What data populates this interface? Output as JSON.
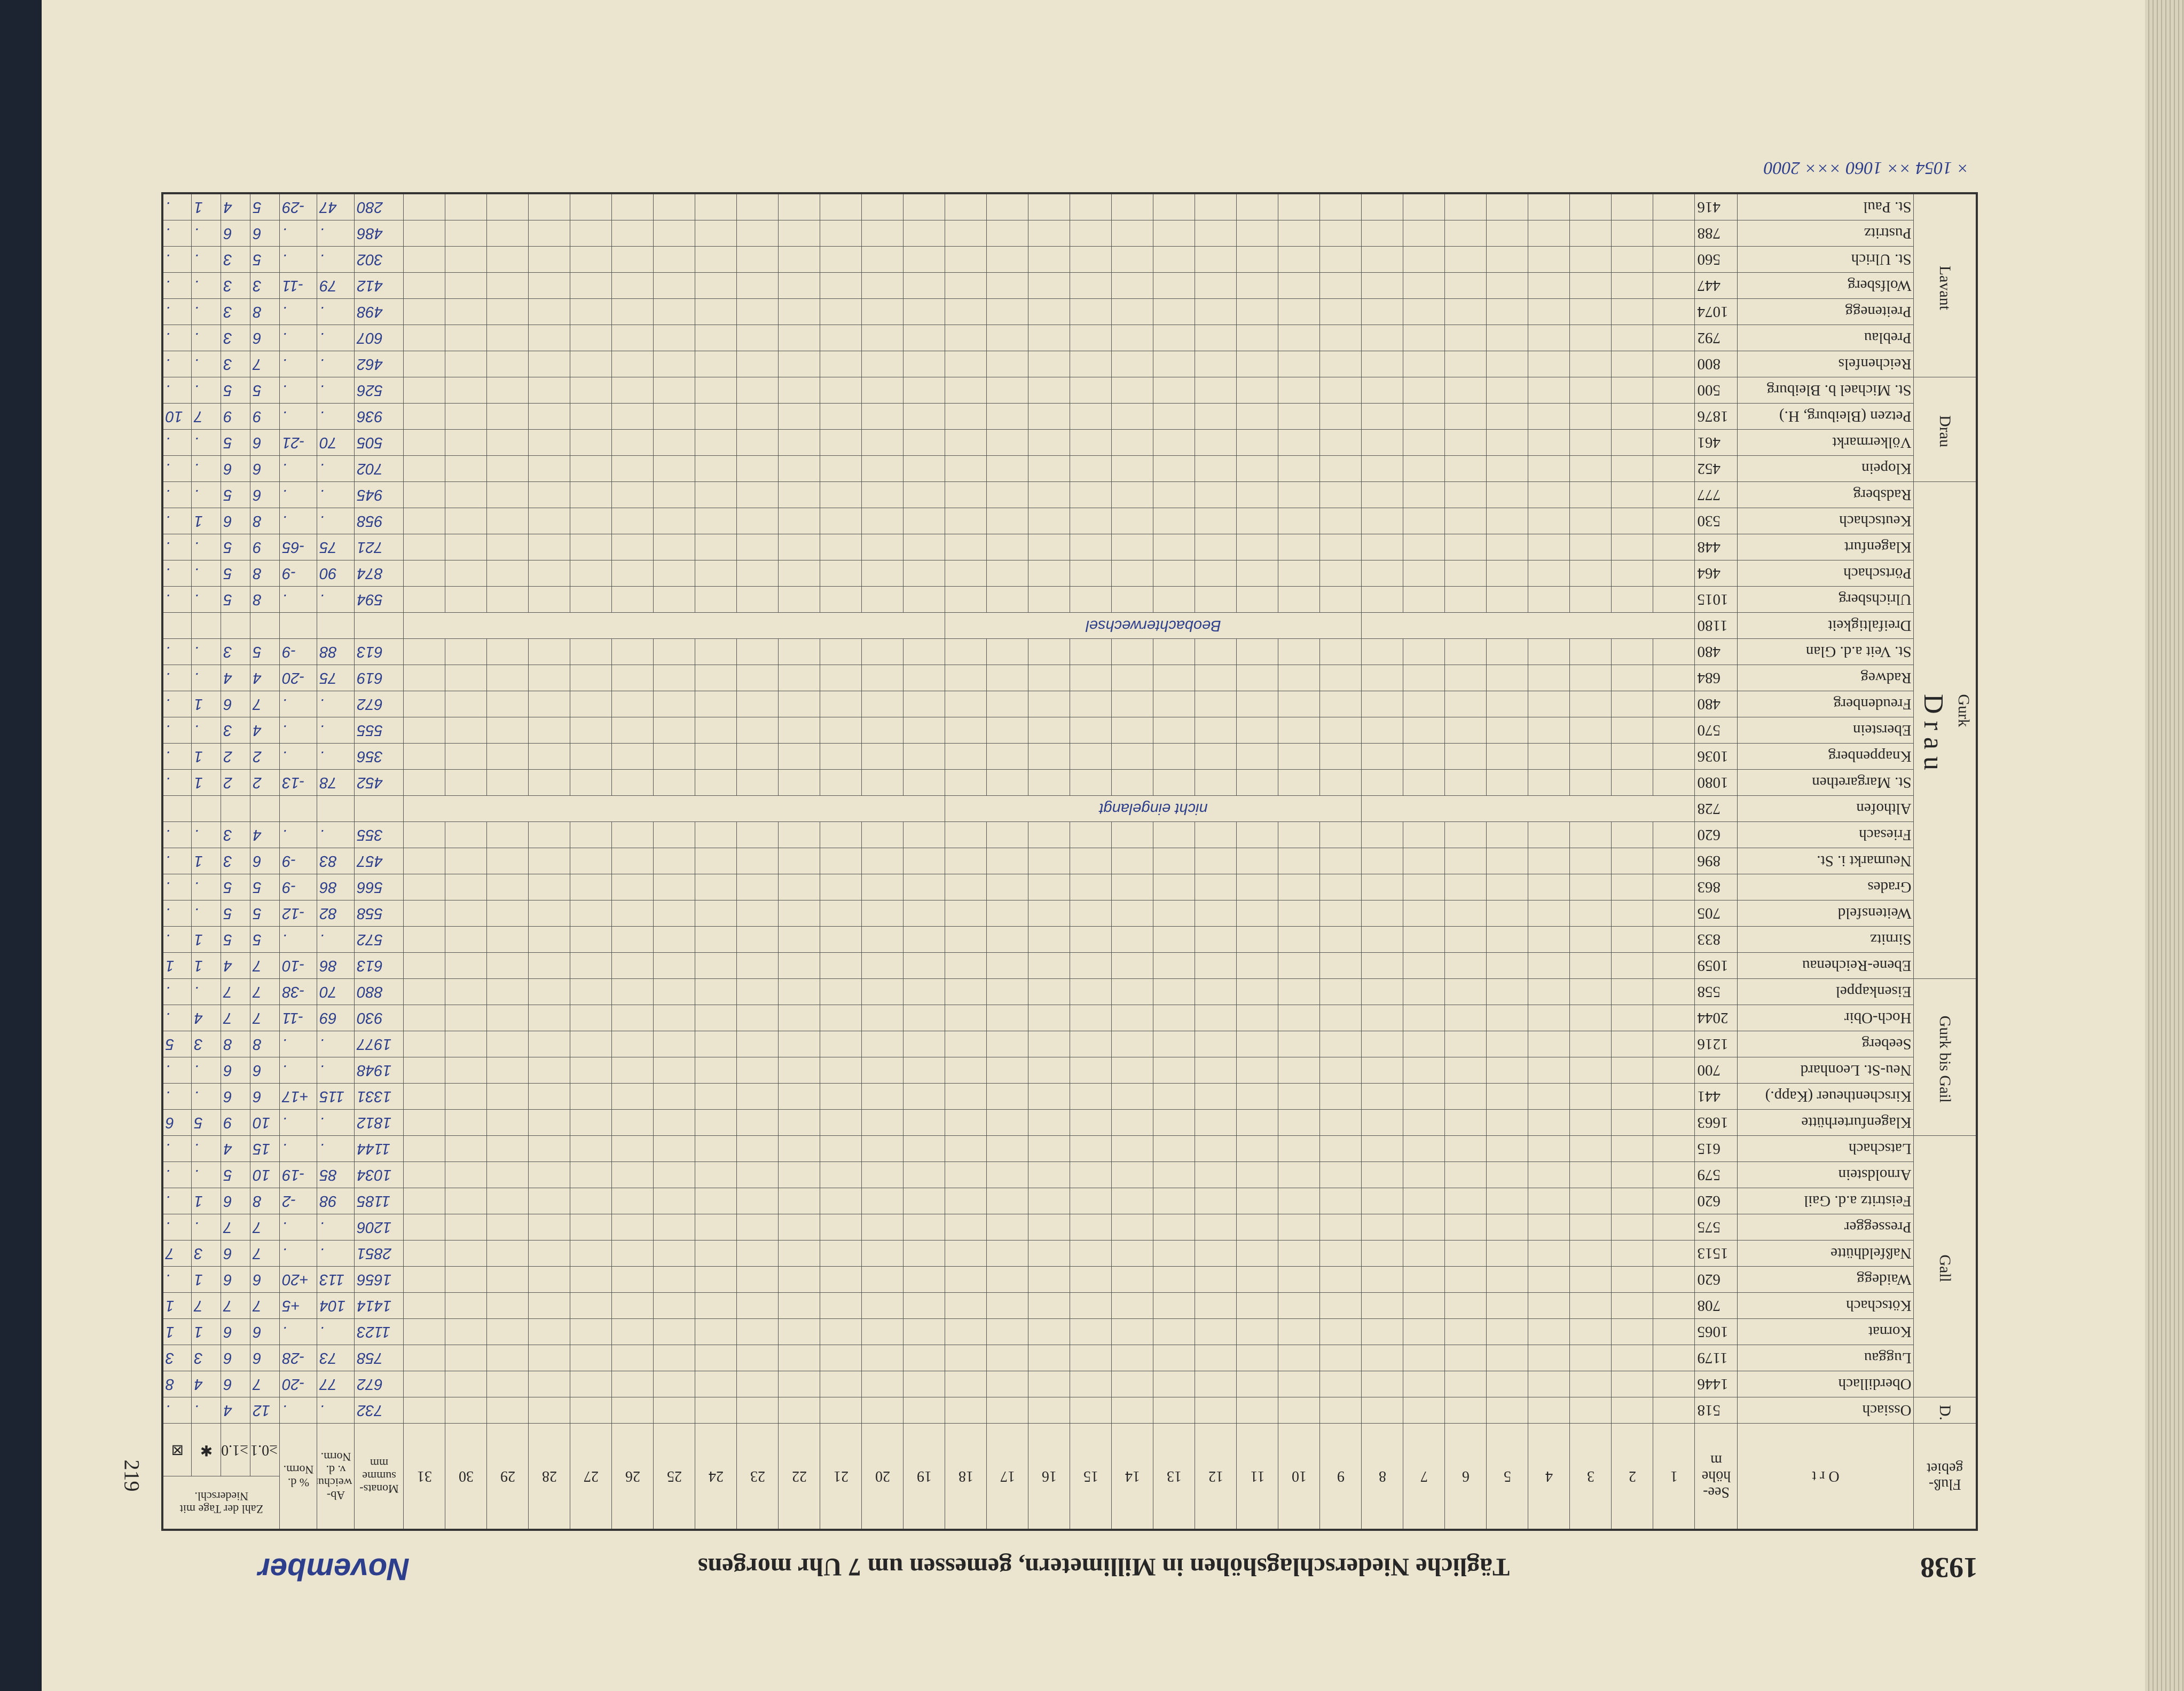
{
  "header": {
    "year": "1938",
    "title": "Tägliche Niederschlagshöhen in Millimetern, gemessen um 7 Uhr morgens",
    "month": "November",
    "page": "219"
  },
  "columns": {
    "region": "Fluß-gebiet",
    "place": "O r t",
    "height": "See-höhe m",
    "days": [
      "1",
      "2",
      "3",
      "4",
      "5",
      "6",
      "7",
      "8",
      "9",
      "10",
      "11",
      "12",
      "13",
      "14",
      "15",
      "16",
      "17",
      "18",
      "19",
      "20",
      "21",
      "22",
      "23",
      "24",
      "25",
      "26",
      "27",
      "28",
      "29",
      "30",
      "31"
    ],
    "sum": "Monats-summe mm",
    "deviation": "Ab-weichung v. d. Norm.",
    "percent": "% d. Norm.",
    "count": "Zahl der Tage mit Niederschl.",
    "count_sub": [
      "≥0.1",
      "≥1.0",
      "✱",
      "⊠"
    ]
  },
  "river": "D r a u",
  "groups": [
    {
      "name": "D.",
      "rows": [
        {
          "name": "Ossiach",
          "height": "518",
          "values": [
            "732",
            ".",
            ".",
            "12",
            "4",
            ".",
            "."
          ]
        }
      ]
    },
    {
      "name": "Gall",
      "rows": [
        {
          "name": "Oberdillach",
          "height": "1446",
          "values": [
            "672",
            "77",
            "-20",
            "7",
            "6",
            "4",
            "8"
          ]
        },
        {
          "name": "Luggau",
          "height": "1179",
          "values": [
            "758",
            "73",
            "-28",
            "6",
            "6",
            "3",
            "3"
          ]
        },
        {
          "name": "Kornat",
          "height": "1065",
          "values": [
            "1123",
            ".",
            ".",
            "6",
            "6",
            "1",
            "1"
          ]
        },
        {
          "name": "Kötschach",
          "height": "708",
          "values": [
            "1414",
            "104",
            "+5",
            "7",
            "7",
            "7",
            "1"
          ]
        },
        {
          "name": "Waidegg",
          "height": "620",
          "values": [
            "1656",
            "113",
            "+20",
            "6",
            "6",
            "1",
            "."
          ]
        },
        {
          "name": "Naßfeldhütte",
          "height": "1513",
          "values": [
            "2851",
            ".",
            ".",
            "7",
            "6",
            "3",
            "7"
          ]
        },
        {
          "name": "Pressegger",
          "height": "575",
          "values": [
            "1206",
            ".",
            ".",
            "7",
            "7",
            ".",
            "."
          ]
        },
        {
          "name": "Feistritz a.d. Gail",
          "height": "620",
          "values": [
            "1185",
            "98",
            "-2",
            "8",
            "6",
            "1",
            "."
          ]
        },
        {
          "name": "Arnoldstein",
          "height": "579",
          "values": [
            "1034",
            "85",
            "-19",
            "10",
            "5",
            ".",
            "."
          ]
        },
        {
          "name": "Latschach",
          "height": "615",
          "values": [
            "1144",
            ".",
            ".",
            "15",
            "4",
            ".",
            "."
          ]
        }
      ]
    },
    {
      "name": "Gurk bis Gail",
      "rows": [
        {
          "name": "Klagenfurterhütte",
          "height": "1663",
          "values": [
            "1812",
            ".",
            ".",
            "10",
            "9",
            "5",
            "6"
          ]
        },
        {
          "name": "Kirschentheuer (Kapp.)",
          "height": "441",
          "values": [
            "1331",
            "115",
            "+17",
            "6",
            "6",
            ".",
            "."
          ]
        },
        {
          "name": "Neu-St. Leonhard",
          "height": "700",
          "values": [
            "1948",
            ".",
            ".",
            "6",
            "6",
            ".",
            "."
          ]
        },
        {
          "name": "Seeberg",
          "height": "1216",
          "values": [
            "1977",
            ".",
            ".",
            "8",
            "8",
            "3",
            "5"
          ]
        },
        {
          "name": "Hoch-Obir",
          "height": "2044",
          "values": [
            "930",
            "69",
            "-11",
            "7",
            "7",
            "4",
            "."
          ]
        },
        {
          "name": "Eisenkappel",
          "height": "558",
          "values": [
            "880",
            "70",
            "-38",
            "7",
            "7",
            ".",
            "."
          ]
        }
      ]
    },
    {
      "name": "Gurk",
      "rows": [
        {
          "name": "Ebene-Reichenau",
          "height": "1059",
          "values": [
            "613",
            "86",
            "-10",
            "7",
            "4",
            "1",
            "1"
          ]
        },
        {
          "name": "Sirnitz",
          "height": "833",
          "values": [
            "572",
            ".",
            ".",
            "5",
            "5",
            "1",
            "."
          ]
        },
        {
          "name": "Weitensfeld",
          "height": "705",
          "values": [
            "558",
            "82",
            "-12",
            "5",
            "5",
            ".",
            "."
          ]
        },
        {
          "name": "Grades",
          "height": "863",
          "values": [
            "566",
            "86",
            "-9",
            "5",
            "5",
            ".",
            "."
          ]
        },
        {
          "name": "Neumarkt i. St.",
          "height": "896",
          "values": [
            "457",
            "83",
            "-9",
            "6",
            "3",
            "1",
            "."
          ]
        },
        {
          "name": "Friesach",
          "height": "620",
          "values": [
            "355",
            ".",
            ".",
            "4",
            "3",
            ".",
            "."
          ]
        },
        {
          "name": "Althofen",
          "height": "728",
          "remark": "nicht eingelangt"
        },
        {
          "name": "St. Margarethen",
          "height": "1080",
          "values": [
            "452",
            "78",
            "-13",
            "2",
            "2",
            "1",
            "."
          ]
        },
        {
          "name": "Knappenberg",
          "height": "1036",
          "values": [
            "356",
            ".",
            ".",
            "2",
            "2",
            "1",
            "."
          ]
        },
        {
          "name": "Eberstein",
          "height": "570",
          "values": [
            "555",
            ".",
            ".",
            "4",
            "3",
            ".",
            "."
          ]
        },
        {
          "name": "Freudenberg",
          "height": "480",
          "values": [
            "672",
            ".",
            ".",
            "7",
            "6",
            "1",
            "."
          ]
        },
        {
          "name": "Radweg",
          "height": "684",
          "values": [
            "619",
            "75",
            "-20",
            "4",
            "4",
            ".",
            "."
          ]
        },
        {
          "name": "St. Veit a.d. Glan",
          "height": "480",
          "values": [
            "613",
            "88",
            "-9",
            "5",
            "3",
            ".",
            "."
          ]
        },
        {
          "name": "Dreifaltigkeit",
          "height": "1180",
          "remark": "Beobachterwechsel"
        },
        {
          "name": "Ulrichsberg",
          "height": "1015",
          "values": [
            "594",
            ".",
            ".",
            "8",
            "5",
            ".",
            "."
          ]
        },
        {
          "name": "Pörtschach",
          "height": "464",
          "values": [
            "874",
            "90",
            "-9",
            "8",
            "5",
            ".",
            "."
          ]
        },
        {
          "name": "Klagenfurt",
          "height": "448",
          "values": [
            "721",
            "75",
            "-65",
            "9",
            "5",
            ".",
            "."
          ]
        },
        {
          "name": "Keutschach",
          "height": "530",
          "values": [
            "958",
            ".",
            ".",
            "8",
            "6",
            "1",
            "."
          ]
        },
        {
          "name": "Radsberg",
          "height": "777",
          "values": [
            "945",
            ".",
            ".",
            "6",
            "5",
            ".",
            "."
          ]
        }
      ]
    },
    {
      "name": "Drau",
      "rows": [
        {
          "name": "Klopein",
          "height": "452",
          "values": [
            "702",
            ".",
            ".",
            "6",
            "6",
            ".",
            "."
          ]
        },
        {
          "name": "Völkermarkt",
          "height": "461",
          "values": [
            "505",
            "70",
            "-21",
            "6",
            "5",
            ".",
            "."
          ]
        },
        {
          "name": "Petzen (Bleiburg, H.)",
          "height": "1876",
          "values": [
            "936",
            ".",
            ".",
            "9",
            "9",
            "7",
            "10"
          ]
        },
        {
          "name": "St. Michael b. Bleiburg",
          "height": "500",
          "values": [
            "526",
            ".",
            ".",
            "5",
            "5",
            ".",
            "."
          ]
        }
      ]
    },
    {
      "name": "Lavant",
      "rows": [
        {
          "name": "Reichenfels",
          "height": "800",
          "values": [
            "462",
            ".",
            ".",
            "7",
            "3",
            ".",
            "."
          ]
        },
        {
          "name": "Preblau",
          "height": "792",
          "values": [
            "607",
            ".",
            ".",
            "6",
            "3",
            ".",
            "."
          ]
        },
        {
          "name": "Preitenegg",
          "height": "1074",
          "values": [
            "498",
            ".",
            ".",
            "8",
            "3",
            ".",
            "."
          ]
        },
        {
          "name": "Wolfsberg",
          "height": "447",
          "values": [
            "412",
            "79",
            "-11",
            "3",
            "3",
            ".",
            "."
          ]
        },
        {
          "name": "St. Ulrich",
          "height": "560",
          "values": [
            "302",
            ".",
            ".",
            "5",
            "3",
            ".",
            "."
          ]
        },
        {
          "name": "Pustritz",
          "height": "788",
          "values": [
            "486",
            ".",
            ".",
            "6",
            "6",
            ".",
            "."
          ]
        },
        {
          "name": "St. Paul",
          "height": "416",
          "values": [
            "280",
            "47",
            "-29",
            "5",
            "4",
            "1",
            "."
          ]
        }
      ]
    }
  ],
  "footnote": "× 1054   ×× 1060   ××× 2000"
}
